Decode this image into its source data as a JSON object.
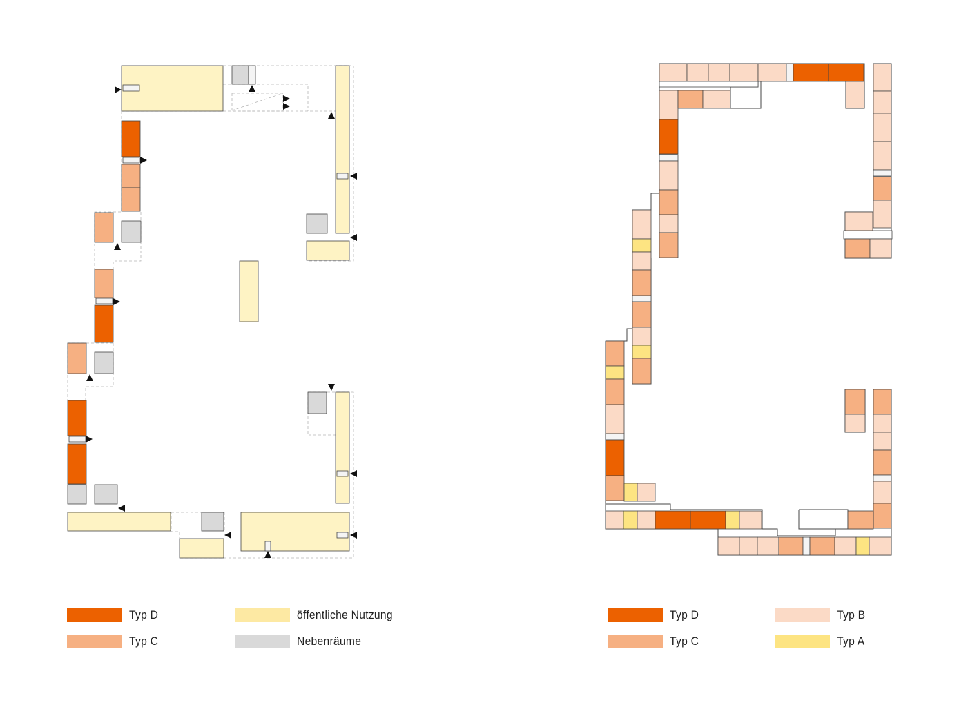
{
  "colors": {
    "typ_d": "#ec6100",
    "typ_c": "#f6b082",
    "typ_b": "#fbdac6",
    "typ_a": "#fde482",
    "public": "#fef3c4",
    "ancillary": "#d9d9d9",
    "outline": "#444444",
    "circulation": "#b5b5b5"
  },
  "legend_left": [
    {
      "label": "Typ D",
      "color_key": "typ_d"
    },
    {
      "label": "Typ C",
      "color_key": "typ_c"
    },
    {
      "label": "öffentliche Nutzung",
      "color_key": "public_swatch"
    },
    {
      "label": "Nebenräume",
      "color_key": "ancillary"
    }
  ],
  "legend_right": [
    {
      "label": "Typ D",
      "color_key": "typ_d"
    },
    {
      "label": "Typ C",
      "color_key": "typ_c"
    },
    {
      "label": "Typ B",
      "color_key": "typ_b"
    },
    {
      "label": "Typ A",
      "color_key": "typ_a"
    }
  ],
  "swatch_colors": {
    "public_swatch": "#fde9a3"
  }
}
